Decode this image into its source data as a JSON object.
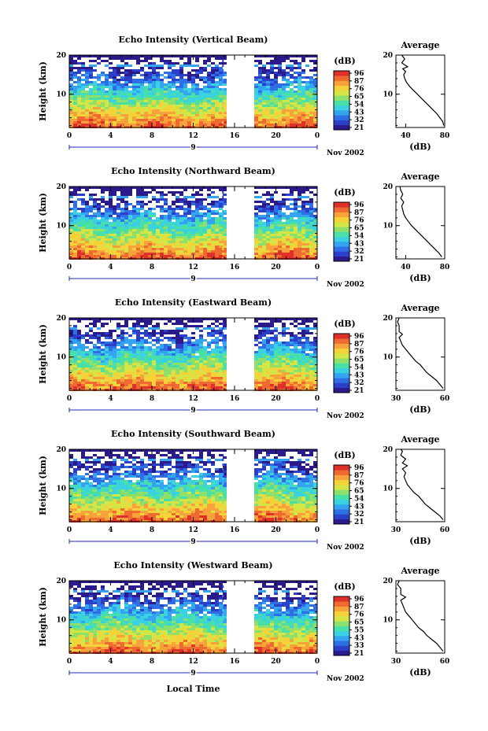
{
  "figure": {
    "x_axis_title": "Local Time",
    "x_axis_ticks": [
      "0",
      "4",
      "8",
      "12",
      "16",
      "20",
      "0"
    ],
    "date_label": "9",
    "month_label": "Nov 2002",
    "y_axis_title": "Height (km)",
    "y_axis_ticks": [
      "10",
      "20"
    ],
    "colorbar_unit": "(dB)",
    "average_title": "Average",
    "average_unit": "(dB)",
    "colormap": [
      "#2a1a8c",
      "#2b3fc8",
      "#2f6fe6",
      "#34a3f0",
      "#3ad1e0",
      "#49e0a8",
      "#8fe06a",
      "#d4e645",
      "#f5d23a",
      "#f7a23a",
      "#ef6a30",
      "#e0302a"
    ]
  },
  "chart_data": [
    {
      "type": "heatmap",
      "title": "Echo Intensity (Vertical Beam)",
      "xlabel": "Local Time",
      "ylabel": "Height (km)",
      "xlim": [
        0,
        24
      ],
      "ylim": [
        1.5,
        20
      ],
      "colorbar_ticks": [
        "96",
        "87",
        "76",
        "65",
        "54",
        "43",
        "32",
        "21"
      ],
      "data_gap_hours": [
        15.3,
        18.0
      ],
      "average_profile": {
        "xlim": [
          30,
          80
        ],
        "x_ticks": [
          "40",
          "80"
        ],
        "ylim": [
          1.5,
          20
        ],
        "y_ticks": [
          "10",
          "20"
        ],
        "points": [
          [
            79,
            2
          ],
          [
            78,
            3
          ],
          [
            75,
            4
          ],
          [
            72,
            5
          ],
          [
            68,
            6
          ],
          [
            64,
            7
          ],
          [
            60,
            8
          ],
          [
            56,
            9
          ],
          [
            52,
            10
          ],
          [
            48,
            11
          ],
          [
            44,
            12
          ],
          [
            41,
            13
          ],
          [
            39,
            14
          ],
          [
            38,
            15
          ],
          [
            40,
            15.8
          ],
          [
            37,
            16.5
          ],
          [
            42,
            17
          ],
          [
            36,
            18
          ],
          [
            39,
            19
          ],
          [
            36,
            20
          ]
        ]
      }
    },
    {
      "type": "heatmap",
      "title": "Echo Intensity (Northward Beam)",
      "xlabel": "Local Time",
      "ylabel": "Height (km)",
      "xlim": [
        0,
        24
      ],
      "ylim": [
        1.5,
        20
      ],
      "colorbar_ticks": [
        "96",
        "87",
        "76",
        "65",
        "54",
        "43",
        "32",
        "21"
      ],
      "data_gap_hours": [
        15.3,
        18.0
      ],
      "average_profile": {
        "xlim": [
          30,
          80
        ],
        "x_ticks": [
          "40",
          "80"
        ],
        "ylim": [
          1.5,
          20
        ],
        "y_ticks": [
          "10",
          "20"
        ],
        "points": [
          [
            77,
            2
          ],
          [
            74,
            3
          ],
          [
            70,
            4
          ],
          [
            66,
            5
          ],
          [
            62,
            6
          ],
          [
            58,
            7
          ],
          [
            54,
            8
          ],
          [
            50,
            9
          ],
          [
            46,
            10
          ],
          [
            43,
            11
          ],
          [
            40,
            12
          ],
          [
            38,
            13
          ],
          [
            37,
            14
          ],
          [
            36,
            15
          ],
          [
            38,
            16
          ],
          [
            35,
            17
          ],
          [
            37,
            18
          ],
          [
            35,
            19
          ],
          [
            34,
            20
          ]
        ]
      }
    },
    {
      "type": "heatmap",
      "title": "Echo Intensity (Eastward Beam)",
      "xlabel": "Local Time",
      "ylabel": "Height (km)",
      "xlim": [
        0,
        24
      ],
      "ylim": [
        1.5,
        20
      ],
      "colorbar_ticks": [
        "96",
        "87",
        "76",
        "65",
        "54",
        "43",
        "32",
        "21"
      ],
      "data_gap_hours": [
        15.3,
        18.0
      ],
      "average_profile": {
        "xlim": [
          30,
          60
        ],
        "x_ticks": [
          "30",
          "60"
        ],
        "ylim": [
          1.5,
          20
        ],
        "y_ticks": [
          "10",
          "20"
        ],
        "points": [
          [
            59,
            2
          ],
          [
            57,
            3
          ],
          [
            55,
            4
          ],
          [
            52,
            5
          ],
          [
            49,
            6
          ],
          [
            47,
            7
          ],
          [
            45,
            8
          ],
          [
            42,
            9
          ],
          [
            40,
            10
          ],
          [
            38,
            11
          ],
          [
            36,
            12
          ],
          [
            34,
            13
          ],
          [
            33,
            14
          ],
          [
            32,
            15
          ],
          [
            34,
            15.8
          ],
          [
            32,
            16.5
          ],
          [
            32,
            18
          ],
          [
            31,
            19
          ],
          [
            32,
            20
          ]
        ]
      }
    },
    {
      "type": "heatmap",
      "title": "Echo Intensity (Southward Beam)",
      "xlabel": "Local Time",
      "ylabel": "Height (km)",
      "xlim": [
        0,
        24
      ],
      "ylim": [
        1.5,
        20
      ],
      "colorbar_ticks": [
        "96",
        "87",
        "76",
        "65",
        "54",
        "43",
        "32",
        "21"
      ],
      "data_gap_hours": [
        15.3,
        18.0
      ],
      "average_profile": {
        "xlim": [
          30,
          60
        ],
        "x_ticks": [
          "30",
          "60"
        ],
        "ylim": [
          1.5,
          20
        ],
        "y_ticks": [
          "10",
          "20"
        ],
        "points": [
          [
            59,
            2
          ],
          [
            57,
            3
          ],
          [
            54,
            4
          ],
          [
            51,
            5
          ],
          [
            48,
            6
          ],
          [
            46,
            7
          ],
          [
            44,
            8
          ],
          [
            41,
            9
          ],
          [
            39,
            10
          ],
          [
            37,
            11
          ],
          [
            36,
            12
          ],
          [
            35,
            13
          ],
          [
            36,
            14
          ],
          [
            34,
            15
          ],
          [
            37,
            15.8
          ],
          [
            34,
            16.5
          ],
          [
            36,
            17.5
          ],
          [
            33,
            18.5
          ],
          [
            34,
            19.5
          ],
          [
            33,
            20
          ]
        ]
      }
    },
    {
      "type": "heatmap",
      "title": "Echo Intensity (Westward Beam)",
      "xlabel": "Local Time",
      "ylabel": "Height (km)",
      "xlim": [
        0,
        24
      ],
      "ylim": [
        1.5,
        20
      ],
      "colorbar_ticks": [
        "96",
        "87",
        "76",
        "65",
        "55",
        "43",
        "33",
        "21"
      ],
      "data_gap_hours": [
        15.3,
        18.0
      ],
      "average_profile": {
        "xlim": [
          30,
          60
        ],
        "x_ticks": [
          "30",
          "60"
        ],
        "ylim": [
          1.5,
          20
        ],
        "y_ticks": [
          "10",
          "20"
        ],
        "points": [
          [
            59,
            2
          ],
          [
            57,
            3
          ],
          [
            55,
            4
          ],
          [
            52,
            5
          ],
          [
            49,
            6
          ],
          [
            47,
            7
          ],
          [
            44,
            8
          ],
          [
            42,
            9
          ],
          [
            40,
            10
          ],
          [
            38,
            11
          ],
          [
            36,
            12
          ],
          [
            35,
            13
          ],
          [
            34,
            14
          ],
          [
            33,
            15
          ],
          [
            36,
            15.8
          ],
          [
            33,
            16.5
          ],
          [
            33,
            18
          ],
          [
            31,
            19
          ],
          [
            32,
            20
          ]
        ]
      }
    }
  ]
}
